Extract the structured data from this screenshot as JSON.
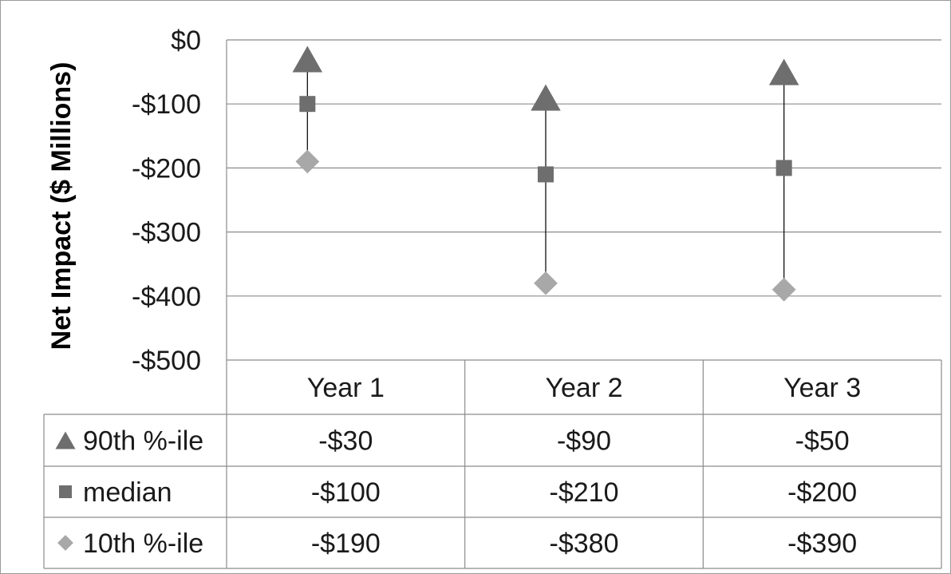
{
  "chart_data": {
    "type": "scatter",
    "title": "",
    "ylabel": "Net Impact ($ Millions)",
    "ylim": [
      -500,
      0
    ],
    "yticks": [
      0,
      -100,
      -200,
      -300,
      -400,
      -500
    ],
    "ytick_labels": [
      "$0",
      "-$100",
      "-$200",
      "-$300",
      "-$400",
      "-$500"
    ],
    "categories": [
      "Year 1",
      "Year 2",
      "Year 3"
    ],
    "grid": "horizontal",
    "error_bars": "line from 90th %-ile to 10th %-ile per year",
    "legend": "data table below axis",
    "series": [
      {
        "name": "90th %-ile",
        "marker": "triangle",
        "color": "#6e6e6e",
        "values": [
          -30,
          -90,
          -50
        ],
        "labels": [
          "-$30",
          "-$90",
          "-$50"
        ]
      },
      {
        "name": "median",
        "marker": "square",
        "color": "#6e6e6e",
        "values": [
          -100,
          -210,
          -200
        ],
        "labels": [
          "-$100",
          "-$210",
          "-$200"
        ]
      },
      {
        "name": "10th %-ile",
        "marker": "diamond",
        "color": "#a8a8a8",
        "values": [
          -190,
          -380,
          -390
        ],
        "labels": [
          "-$190",
          "-$380",
          "-$390"
        ]
      }
    ]
  }
}
